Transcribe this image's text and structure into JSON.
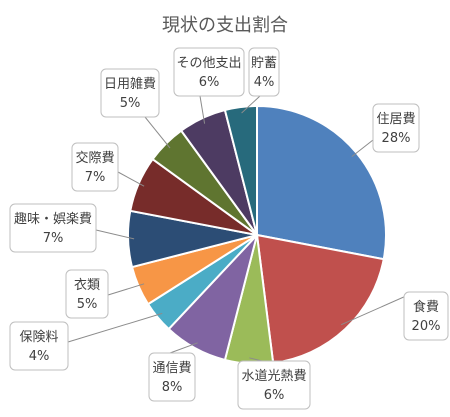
{
  "chart_data": {
    "type": "pie",
    "title": "現状の支出割合",
    "series": [
      {
        "name": "住居費",
        "value": 28,
        "label": "28%",
        "color": "#4f81bd"
      },
      {
        "name": "食費",
        "value": 20,
        "label": "20%",
        "color": "#c0504d"
      },
      {
        "name": "水道光熱費",
        "value": 6,
        "label": "6%",
        "color": "#9bbb59"
      },
      {
        "name": "通信費",
        "value": 8,
        "label": "8%",
        "color": "#8064a2"
      },
      {
        "name": "保険料",
        "value": 4,
        "label": "4%",
        "color": "#4bacc6"
      },
      {
        "name": "衣類",
        "value": 5,
        "label": "5%",
        "color": "#f79646"
      },
      {
        "name": "趣味・娯楽費",
        "value": 7,
        "label": "7%",
        "color": "#2c4d75"
      },
      {
        "name": "交際費",
        "value": 7,
        "label": "7%",
        "color": "#772c2a"
      },
      {
        "name": "日用雑費",
        "value": 5,
        "label": "5%",
        "color": "#5f7530"
      },
      {
        "name": "その他支出",
        "value": 6,
        "label": "6%",
        "color": "#4d3b62"
      },
      {
        "name": "貯蓄",
        "value": 4,
        "label": "4%",
        "color": "#276a7c"
      }
    ]
  }
}
